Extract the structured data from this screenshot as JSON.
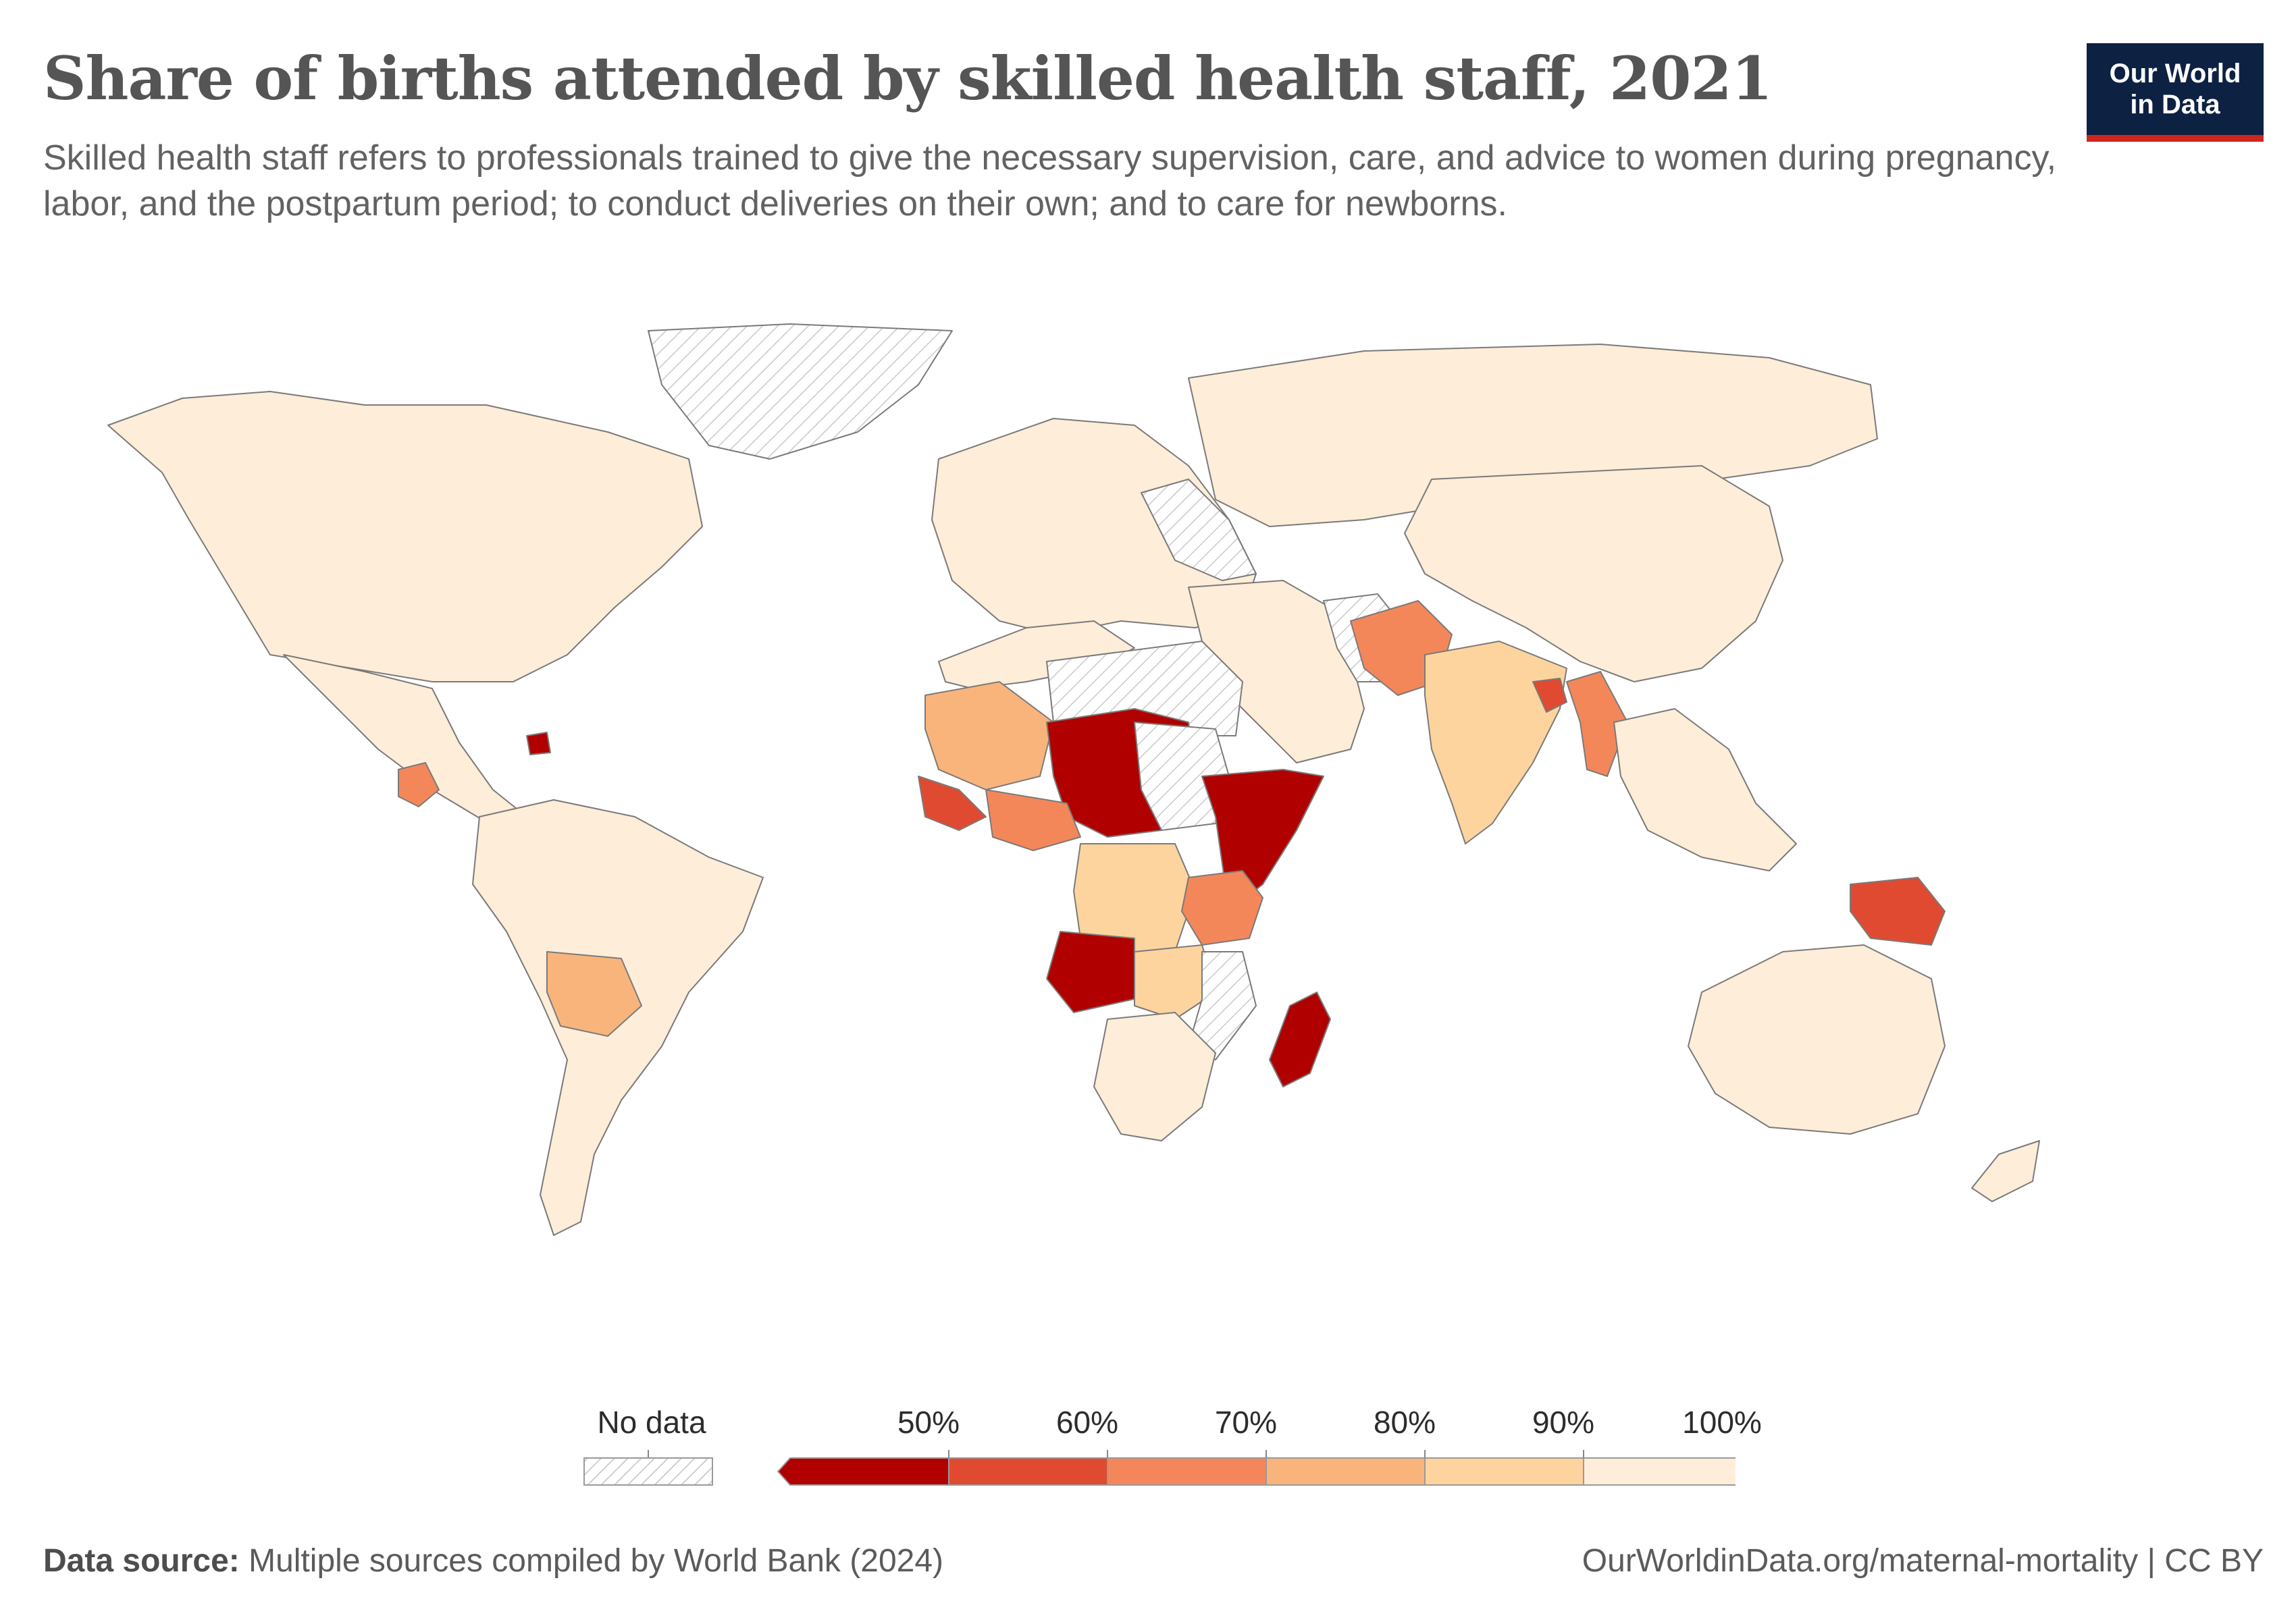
{
  "header": {
    "title": "Share of births attended by skilled health staff, 2021",
    "subtitle": "Skilled health staff refers to professionals trained to give the necessary supervision, care, and advice to women during pregnancy, labor, and the postpartum period; to conduct deliveries on their own; and to care for newborns."
  },
  "logo": {
    "line1": "Our World",
    "line2": "in Data",
    "bg_color": "#0d2143",
    "accent_color": "#ce261e"
  },
  "legend": {
    "no_data_label": "No data",
    "ticks": [
      "50%",
      "60%",
      "70%",
      "80%",
      "90%",
      "100%"
    ],
    "bins": [
      {
        "range": "<50%",
        "color": "#b00000"
      },
      {
        "range": "50–60%",
        "color": "#e04a31"
      },
      {
        "range": "60–70%",
        "color": "#f4875a"
      },
      {
        "range": "70–80%",
        "color": "#f9b47c"
      },
      {
        "range": "80–90%",
        "color": "#fdd49e"
      },
      {
        "range": "90–100%",
        "color": "#feedd9"
      }
    ]
  },
  "map": {
    "regions": [
      {
        "name": "North America",
        "bin": 5
      },
      {
        "name": "Greenland",
        "bin": "none"
      },
      {
        "name": "Central America",
        "bin": 5
      },
      {
        "name": "Guatemala",
        "bin": 2
      },
      {
        "name": "Haiti",
        "bin": 0
      },
      {
        "name": "South America",
        "bin": 5
      },
      {
        "name": "Bolivia",
        "bin": 3
      },
      {
        "name": "Europe",
        "bin": 5
      },
      {
        "name": "Eastern Europe",
        "bin": "none"
      },
      {
        "name": "Russia",
        "bin": 5
      },
      {
        "name": "Middle East",
        "bin": 5
      },
      {
        "name": "Iran",
        "bin": "none"
      },
      {
        "name": "Pakistan / Afghanistan",
        "bin": 2
      },
      {
        "name": "India",
        "bin": 4
      },
      {
        "name": "Bangladesh",
        "bin": 1
      },
      {
        "name": "Myanmar",
        "bin": 2
      },
      {
        "name": "China",
        "bin": 5
      },
      {
        "name": "Southeast Asia",
        "bin": 5
      },
      {
        "name": "Papua New Guinea",
        "bin": 1
      },
      {
        "name": "Australia",
        "bin": 5
      },
      {
        "name": "New Zealand",
        "bin": 5
      },
      {
        "name": "North Africa",
        "bin": 5
      },
      {
        "name": "Libya / Egypt",
        "bin": "none"
      },
      {
        "name": "Mauritania / Mali",
        "bin": 3
      },
      {
        "name": "Niger / Chad / Nigeria",
        "bin": 0
      },
      {
        "name": "West Africa coast",
        "bin": 1
      },
      {
        "name": "Cameroon",
        "bin": 2
      },
      {
        "name": "Sudan",
        "bin": "none"
      },
      {
        "name": "Ethiopia / Somalia",
        "bin": 0
      },
      {
        "name": "DR Congo",
        "bin": 4
      },
      {
        "name": "Tanzania",
        "bin": 2
      },
      {
        "name": "Angola",
        "bin": 0
      },
      {
        "name": "Zambia",
        "bin": 4
      },
      {
        "name": "Mozambique",
        "bin": "none"
      },
      {
        "name": "Southern Africa",
        "bin": 5
      },
      {
        "name": "Madagascar",
        "bin": 0
      }
    ]
  },
  "footer": {
    "source_label": "Data source:",
    "source_text": "Multiple sources compiled by World Bank (2024)",
    "url_text": "OurWorldinData.org/maternal-mortality | CC BY"
  }
}
